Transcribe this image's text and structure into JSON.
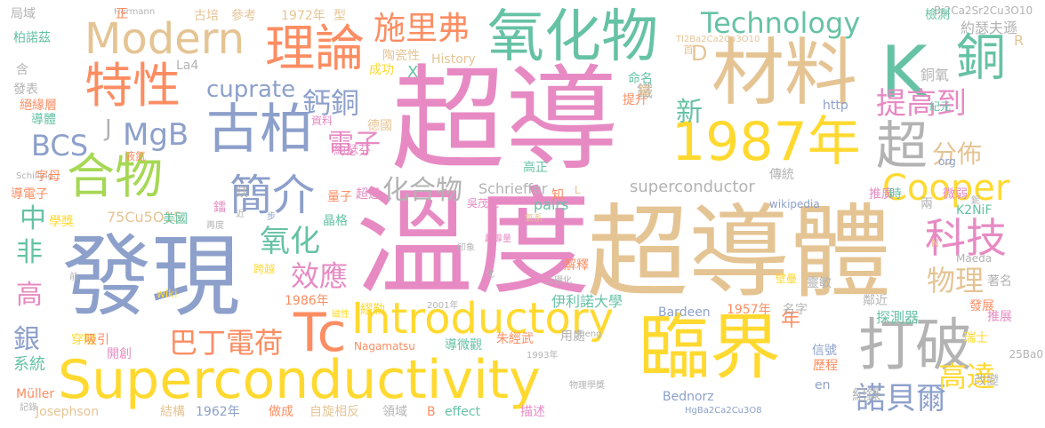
{
  "palette": {
    "pink": "#e78ac3",
    "tan": "#e5c494",
    "green": "#a6d854",
    "teal": "#66c2a5",
    "blue": "#8da0cb",
    "orange": "#fc8d62",
    "yellow": "#ffd92f",
    "gray": "#b3b3b3"
  },
  "words": [
    "超導",
    "溫度",
    "超導體",
    "發現",
    "臨界",
    "材料",
    "K",
    "Superconductivity",
    "氧化物",
    "理論",
    "古柏",
    "1987年",
    "特性",
    "合物",
    "銅",
    "Tc",
    "打破",
    "Modern",
    "Introductory",
    "簡介",
    "超",
    "科技",
    "Cooper",
    "提高到",
    "施里弗",
    "Technology",
    "cuprate",
    "MgB",
    "BCS",
    "巴丁電荷",
    "鈣銅",
    "氧化",
    "效應",
    "物理",
    "諾貝爾",
    "高達",
    "電子",
    "化合物",
    "分佈",
    "新",
    "D",
    "J",
    "中",
    "非",
    "高",
    "銀",
    "系統",
    "年",
    "superconductor",
    "Schrieffer",
    "Bardeen",
    "Bednorz",
    "Josephson",
    "1986年",
    "1957年",
    "1962年",
    "1972年",
    "伊利諾大學",
    "探測器",
    "結構",
    "做成",
    "自旋相反",
    "領域",
    "描述",
    "effect",
    "B",
    "History",
    "陶瓷性",
    "成功",
    "La4",
    "X",
    "75Cu5O15",
    "Müller",
    "wiki",
    "pairs",
    "25Ba0",
    "K2NiF",
    "R",
    "Bi2Ca2Sr2Cu3O10",
    "Tl2Ba2Ca2Cu3O10",
    "HgBa2Ca2Cu3O8",
    "Nagamatsu",
    "Maeda",
    "Hermann",
    "Schilling",
    "http",
    "org",
    "wikipedia",
    "en",
    "N",
    "L",
    "鐵",
    "銅氧",
    "紀元",
    "提升",
    "命名",
    "首",
    "德國",
    "鐵",
    "資料",
    "約瑟夫遜",
    "約瑟芬",
    "檢測",
    "古培",
    "參考",
    "型",
    "正",
    "柏諾茲",
    "局域",
    "發表",
    "含",
    "絕緣層",
    "導體",
    "液氮",
    "字母",
    "導電子",
    "學獎",
    "美國",
    "步",
    "量子",
    "晶格",
    "超過",
    "高正",
    "吳茂昆",
    "氧系",
    "知",
    "超導量",
    "穿隧",
    "吸引",
    "開創",
    "跨越",
    "繆勒",
    "前",
    "2001年",
    "磁性",
    "朱經武",
    "用處",
    "導微觀",
    "1993年",
    "Sheng",
    "物理學獎",
    "歷程",
    "改變",
    "瑞士",
    "信號",
    "推展",
    "發展",
    "著名",
    "鄰近",
    "名字",
    "靈敏",
    "壁壘",
    "兩",
    "微弱",
    "推廣",
    "時",
    "傳統",
    "鈮",
    "解釋",
    "紀錄",
    "記錄",
    "化",
    "二硼化",
    "印象",
    "再度",
    "鎂",
    "鐳",
    "近"
  ]
}
